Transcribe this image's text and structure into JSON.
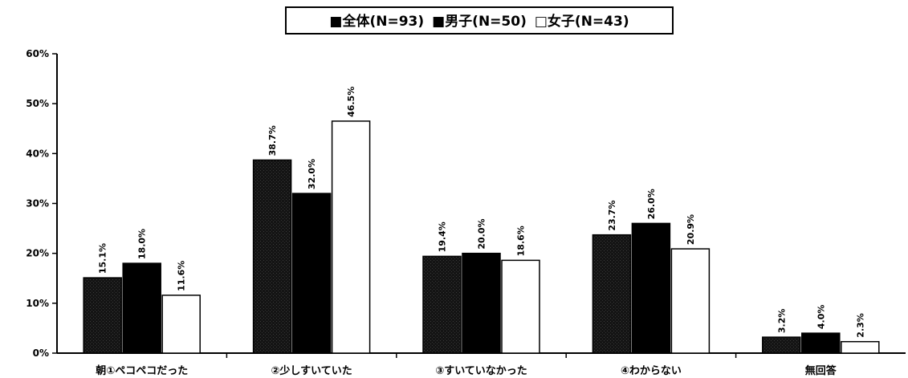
{
  "chart_data": {
    "type": "bar",
    "title": "",
    "xlabel": "",
    "ylabel": "",
    "categories": [
      "朝①ペコペコだった",
      "②少しすいていた",
      "③すいていなかった",
      "④わからない",
      "無回答"
    ],
    "series": [
      {
        "name": "全体(N=93)",
        "values": [
          15.1,
          38.7,
          19.4,
          23.7,
          3.2
        ],
        "labels": [
          "15.1%",
          "38.7%",
          "19.4%",
          "23.7%",
          "3.2%"
        ],
        "color": "#1a1a1a",
        "marker": "■"
      },
      {
        "name": "男子(N=50)",
        "values": [
          18.0,
          32.0,
          20.0,
          26.0,
          4.0
        ],
        "labels": [
          "18.0%",
          "32.0%",
          "20.0%",
          "26.0%",
          "4.0%"
        ],
        "color": "#000000",
        "marker": "■"
      },
      {
        "name": "女子(N=43)",
        "values": [
          11.6,
          46.5,
          18.6,
          20.9,
          2.3
        ],
        "labels": [
          "11.6%",
          "46.5%",
          "18.6%",
          "20.9%",
          "2.3%"
        ],
        "color": "#ffffff",
        "marker": "□"
      }
    ],
    "ylim": [
      0,
      60
    ],
    "yticks": [
      "0%",
      "10%",
      "20%",
      "30%",
      "40%",
      "50%",
      "60%"
    ],
    "legend_position": "top-center",
    "grid": false
  }
}
